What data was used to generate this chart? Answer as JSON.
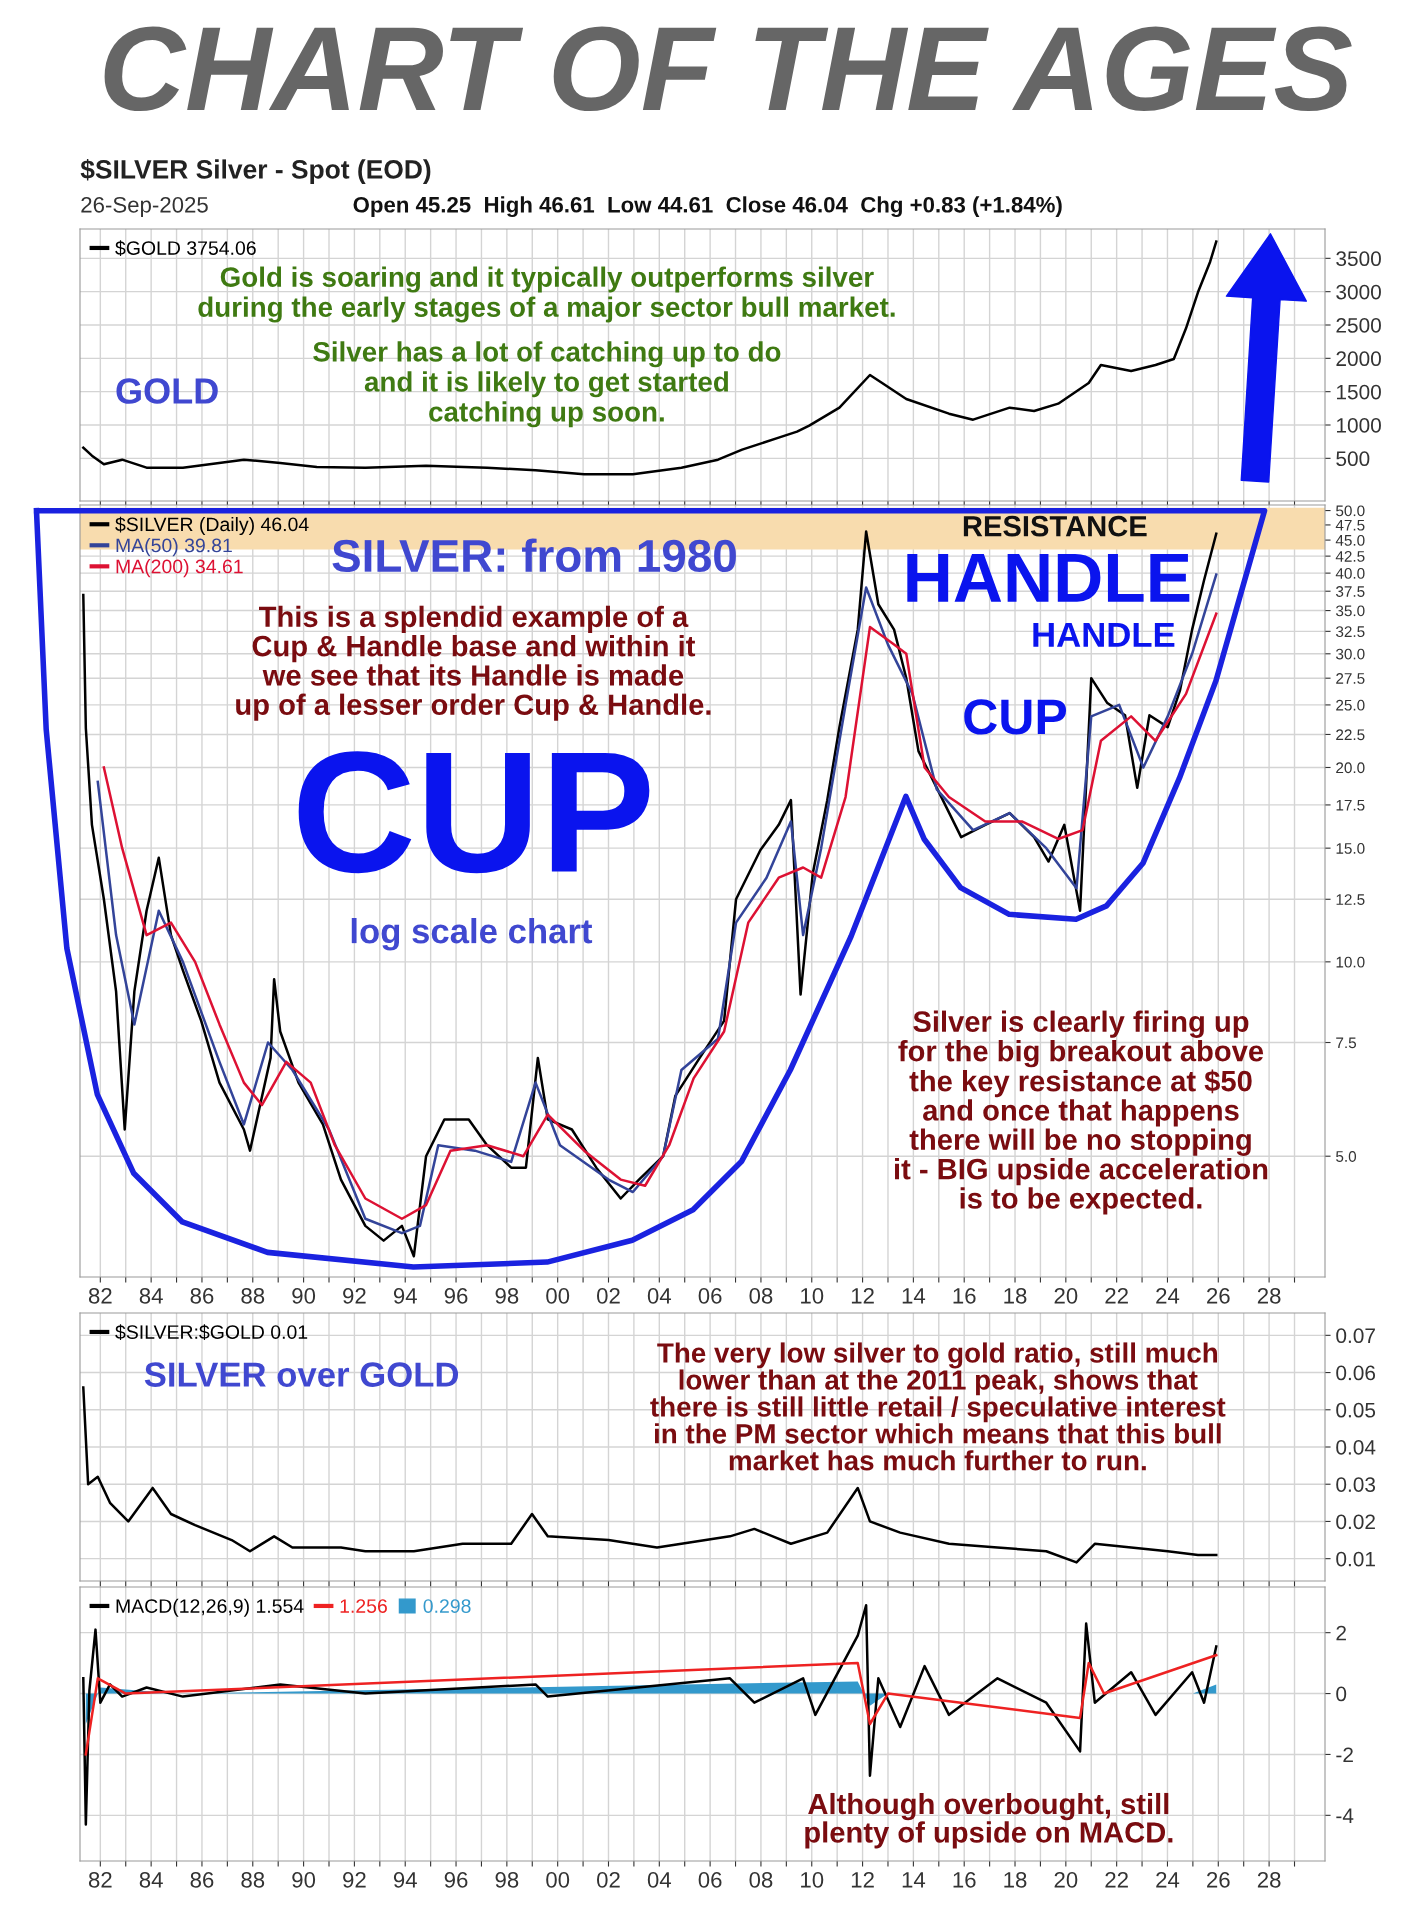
{
  "chart_data": [
    {
      "type": "line",
      "title": "CHART OF THE AGES",
      "subtitle": "$SILVER Silver - Spot (EOD)",
      "annotations": [
        "Gold is soaring and it typically outperforms silver\nduring the early stages of a major sector bull market.",
        "Silver has a lot of catching up to do\nand it is likely to get started\ncatching up soon.",
        "GOLD",
        "26-Sep-2025",
        "Open 45.25  High 46.61  Low 44.61  Close 46.04  Chg +0.83 (+1.84%)"
      ],
      "series": [
        {
          "name": "$GOLD 3754.06",
          "color": "#000000",
          "x": [
            1981.33,
            1981.67,
            1982.14,
            1982.86,
            1983.82,
            1985.25,
            1987.65,
            1989.08,
            1990.52,
            1992.43,
            1994.82,
            1997.22,
            1999.13,
            2001.04,
            2002.96,
            2004.87,
            2006.31,
            2007.26,
            2008.7,
            2009.42,
            2009.9,
            2011.09,
            2012.29,
            2012.77,
            2013.72,
            2015.4,
            2016.35,
            2017.79,
            2018.75,
            2019.7,
            2020.9,
            2021.38,
            2022.57,
            2023.53,
            2024.25,
            2024.73,
            2025.2,
            2025.68,
            2025.92
          ],
          "values": [
            660,
            540,
            410,
            480,
            360,
            360,
            480,
            430,
            370,
            360,
            390,
            360,
            320,
            260,
            260,
            360,
            480,
            630,
            810,
            900,
            990,
            1260,
            1750,
            1630,
            1390,
            1170,
            1080,
            1260,
            1210,
            1320,
            1630,
            1900,
            1810,
            1900,
            1990,
            2450,
            2990,
            3450,
            3750
          ]
        }
      ],
      "xlim": [
        1981.2,
        2030.2
      ],
      "xticks": [
        1982,
        1983,
        1984,
        1985,
        1986,
        1987,
        1988,
        1989,
        1990,
        1991,
        1992,
        1993,
        1994,
        1995,
        1996,
        1997,
        1998,
        1999,
        2000,
        2001,
        2002,
        2003,
        2004,
        2005,
        2006,
        2007,
        2008,
        2009,
        2010,
        2011,
        2012,
        2013,
        2014,
        2015,
        2016,
        2017,
        2018,
        2019,
        2020,
        2021,
        2022,
        2023,
        2024,
        2025,
        2026,
        2027,
        2028,
        2029
      ],
      "ylim": [
        -140,
        3940
      ],
      "yticks": [
        500,
        1000,
        1500,
        2000,
        2500,
        3000,
        3500
      ],
      "grid": true,
      "legend": "top left",
      "tick_labels": "y"
    },
    {
      "type": "line",
      "annotations": [
        "SILVER: from 1980",
        "This is a splendid example of a\nCup & Handle base and within it\nwe see that its Handle is made\nup of a lesser order Cup & Handle.",
        "CUP",
        "log scale chart",
        "HANDLE",
        "HANDLE",
        "CUP",
        "Silver is clearly firing up\nfor the big breakout above\nthe key resistance at $50\nand once that happens\nthere will be no stopping\nit - BIG upside acceleration\nis to be expected."
      ],
      "series": [
        {
          "name": "$SILVER (Daily) 46.04",
          "color": "#000000",
          "x": [
            1981.33,
            1981.43,
            1981.67,
            1982.14,
            1982.62,
            1982.96,
            1983.34,
            1983.82,
            1984.3,
            1984.78,
            1985.25,
            1985.97,
            1986.69,
            1987.65,
            1987.89,
            1988.7,
            1988.84,
            1989.08,
            1989.8,
            1990.76,
            1991.47,
            1992.43,
            1993.15,
            1993.87,
            1994.34,
            1994.82,
            1995.54,
            1996.5,
            1997.22,
            1998.17,
            1998.75,
            1999.22,
            1999.61,
            2000.56,
            2001.52,
            2002.48,
            2003.2,
            2004.15,
            2004.63,
            2005.59,
            2006.55,
            2007.02,
            2007.98,
            2008.7,
            2009.18,
            2009.56,
            2010.04,
            2010.61,
            2011.09,
            2011.81,
            2012.14,
            2012.62,
            2013.24,
            2013.72,
            2014.2,
            2014.92,
            2015.88,
            2016.83,
            2017.79,
            2018.75,
            2019.32,
            2019.94,
            2020.56,
            2021.0,
            2021.62,
            2022.33,
            2022.81,
            2023.29,
            2024.01,
            2024.49,
            2024.97,
            2025.44,
            2025.92
          ],
          "values": [
            37,
            23,
            16.3,
            12.5,
            9,
            5.5,
            9,
            12,
            14.5,
            11,
            9.7,
            8.1,
            6.5,
            5.5,
            5.1,
            7.1,
            9.4,
            7.8,
            6.5,
            5.6,
            4.6,
            3.9,
            3.7,
            3.9,
            3.5,
            5.0,
            5.7,
            5.7,
            5.2,
            4.8,
            4.8,
            7.1,
            5.7,
            5.5,
            4.8,
            4.3,
            4.6,
            5.0,
            6.2,
            7.1,
            8.1,
            12.5,
            14.9,
            16.3,
            17.8,
            8.9,
            13.7,
            17.8,
            23.1,
            32.7,
            46.4,
            35.8,
            32.7,
            27.5,
            21.2,
            18.6,
            15.6,
            16.3,
            17.0,
            15.6,
            14.3,
            16.3,
            12.0,
            27.5,
            25.2,
            24.1,
            18.6,
            24.1,
            23.1,
            26.3,
            32.7,
            39.0,
            46.04
          ]
        },
        {
          "name": "MA(50) 39.81",
          "color": "#334499",
          "x": [
            1981.9,
            1982.62,
            1983.34,
            1984.3,
            1985.25,
            1986.69,
            1987.65,
            1988.6,
            1989.56,
            1991.0,
            1992.43,
            1993.87,
            1994.58,
            1995.3,
            1996.74,
            1998.17,
            1999.13,
            2000.09,
            2002.0,
            2002.96,
            2004.15,
            2004.87,
            2006.31,
            2007.02,
            2008.22,
            2009.18,
            2009.66,
            2010.37,
            2011.33,
            2012.14,
            2013.0,
            2013.96,
            2014.92,
            2016.35,
            2017.79,
            2019.23,
            2020.42,
            2021.0,
            2022.1,
            2023.05,
            2024.01,
            2024.97,
            2025.92
          ],
          "values": [
            19,
            11,
            8,
            12,
            10,
            7,
            5.6,
            7.5,
            6.8,
            5.5,
            4.0,
            3.8,
            3.9,
            5.2,
            5.1,
            4.9,
            6.5,
            5.2,
            4.6,
            4.4,
            5.0,
            6.8,
            7.6,
            11.5,
            13.5,
            16.5,
            11,
            15,
            25,
            38,
            31,
            26,
            18.5,
            16,
            17,
            15,
            13,
            24,
            25,
            20,
            24,
            30,
            39.81
          ]
        },
        {
          "name": "MA(200) 34.61",
          "color": "#dd1133",
          "x": [
            1982.14,
            1982.86,
            1983.82,
            1984.78,
            1985.73,
            1986.69,
            1987.65,
            1988.36,
            1989.32,
            1990.28,
            1991.23,
            1992.43,
            1993.87,
            1994.82,
            1995.78,
            1997.22,
            1998.65,
            1999.61,
            2001.04,
            2002.48,
            2003.44,
            2004.39,
            2005.35,
            2006.55,
            2007.5,
            2008.7,
            2009.66,
            2010.37,
            2011.33,
            2012.29,
            2013.24,
            2013.72,
            2014.44,
            2015.4,
            2016.83,
            2018.27,
            2019.7,
            2020.66,
            2021.38,
            2022.57,
            2023.53,
            2024.73,
            2025.92
          ],
          "values": [
            20,
            15,
            11,
            11.5,
            10,
            8,
            6.5,
            6,
            7,
            6.5,
            5.2,
            4.3,
            4.0,
            4.2,
            5.1,
            5.2,
            5.0,
            5.8,
            5.1,
            4.6,
            4.5,
            5.2,
            6.6,
            7.8,
            11.5,
            13.5,
            14,
            13.5,
            18,
            33,
            31,
            30,
            20,
            18,
            16.5,
            16.5,
            15.5,
            16,
            22,
            24,
            22,
            26,
            34.61
          ]
        }
      ],
      "xlim": [
        1981.2,
        2030.2
      ],
      "xticks": [
        {
          "value": 1982,
          "label": "82"
        },
        {
          "value": 1983,
          "label": null
        },
        {
          "value": 1984,
          "label": "84"
        },
        {
          "value": 1985,
          "label": null
        },
        {
          "value": 1986,
          "label": "86"
        },
        {
          "value": 1987,
          "label": null
        },
        {
          "value": 1988,
          "label": "88"
        },
        {
          "value": 1989,
          "label": null
        },
        {
          "value": 1990,
          "label": "90"
        },
        {
          "value": 1991,
          "label": null
        },
        {
          "value": 1992,
          "label": "92"
        },
        {
          "value": 1993,
          "label": null
        },
        {
          "value": 1994,
          "label": "94"
        },
        {
          "value": 1995,
          "label": null
        },
        {
          "value": 1996,
          "label": "96"
        },
        {
          "value": 1997,
          "label": null
        },
        {
          "value": 1998,
          "label": "98"
        },
        {
          "value": 1999,
          "label": null
        },
        {
          "value": 2000,
          "label": "00"
        },
        {
          "value": 2001,
          "label": null
        },
        {
          "value": 2002,
          "label": "02"
        },
        {
          "value": 2003,
          "label": null
        },
        {
          "value": 2004,
          "label": "04"
        },
        {
          "value": 2005,
          "label": null
        },
        {
          "value": 2006,
          "label": "06"
        },
        {
          "value": 2007,
          "label": null
        },
        {
          "value": 2008,
          "label": "08"
        },
        {
          "value": 2009,
          "label": null
        },
        {
          "value": 2010,
          "label": "10"
        },
        {
          "value": 2011,
          "label": null
        },
        {
          "value": 2012,
          "label": "12"
        },
        {
          "value": 2013,
          "label": null
        },
        {
          "value": 2014,
          "label": "14"
        },
        {
          "value": 2015,
          "label": null
        },
        {
          "value": 2016,
          "label": "16"
        },
        {
          "value": 2017,
          "label": null
        },
        {
          "value": 2018,
          "label": "18"
        },
        {
          "value": 2019,
          "label": null
        },
        {
          "value": 2020,
          "label": "20"
        },
        {
          "value": 2021,
          "label": null
        },
        {
          "value": 2022,
          "label": "22"
        },
        {
          "value": 2023,
          "label": null
        },
        {
          "value": 2024,
          "label": "24"
        },
        {
          "value": 2025,
          "label": null
        },
        {
          "value": 2026,
          "label": "26"
        },
        {
          "value": 2027,
          "label": null
        },
        {
          "value": 2028,
          "label": "28"
        },
        {
          "value": 2029,
          "label": null
        }
      ],
      "log": "y",
      "ylim": [
        3.25,
        51
      ],
      "yticks": [
        {
          "value": 5,
          "label": "5.0"
        },
        {
          "value": 7.5,
          "label": "7.5"
        },
        {
          "value": 10,
          "label": "10.0"
        },
        {
          "value": 12.5,
          "label": "12.5"
        },
        {
          "value": 15,
          "label": "15.0"
        },
        {
          "value": 17.5,
          "label": "17.5"
        },
        {
          "value": 20,
          "label": "20.0"
        },
        {
          "value": 22.5,
          "label": "22.5"
        },
        {
          "value": 25,
          "label": "25.0"
        },
        {
          "value": 27.5,
          "label": "27.5"
        },
        {
          "value": 30,
          "label": "30.0"
        },
        {
          "value": 32.5,
          "label": "32.5"
        },
        {
          "value": 35,
          "label": "35.0"
        },
        {
          "value": 37.5,
          "label": "37.5"
        },
        {
          "value": 40,
          "label": "40.0"
        },
        {
          "value": 42.5,
          "label": "42.5"
        },
        {
          "value": 45,
          "label": "45.0"
        },
        {
          "value": 47.5,
          "label": "47.5"
        },
        {
          "value": 50,
          "label": "50.0"
        }
      ],
      "bands": [
        {
          "axis": "y",
          "from": 43.5,
          "to": 50.5,
          "label": "RESISTANCE",
          "color": "#f8dcae"
        }
      ],
      "grid": true,
      "legend": "top left"
    },
    {
      "type": "line",
      "annotations": [
        "SILVER over GOLD",
        "The very low silver to gold ratio, still much\nlower than at the 2011 peak, shows that\nthere is still little retail / speculative interest\nin the PM sector which means that this bull\nmarket has much further to run."
      ],
      "series": [
        {
          "name": "$SILVER:$GOLD 0.01",
          "color": "#000000",
          "x": [
            1981.33,
            1981.52,
            1981.9,
            1982.38,
            1983.1,
            1984.06,
            1984.78,
            1985.73,
            1987.17,
            1987.89,
            1988.84,
            1989.56,
            1991.47,
            1992.43,
            1994.34,
            1996.26,
            1998.17,
            1998.99,
            1999.61,
            2002.0,
            2003.91,
            2004.87,
            2006.78,
            2007.74,
            2009.18,
            2010.61,
            2011.81,
            2012.29,
            2013.48,
            2015.4,
            2017.31,
            2019.23,
            2020.42,
            2021.14,
            2022.57,
            2024.01,
            2025.2,
            2025.92
          ],
          "values": [
            0.056,
            0.03,
            0.032,
            0.025,
            0.02,
            0.029,
            0.022,
            0.019,
            0.015,
            0.012,
            0.016,
            0.013,
            0.013,
            0.012,
            0.012,
            0.014,
            0.014,
            0.022,
            0.016,
            0.015,
            0.013,
            0.014,
            0.016,
            0.018,
            0.014,
            0.017,
            0.029,
            0.02,
            0.017,
            0.014,
            0.013,
            0.012,
            0.009,
            0.014,
            0.013,
            0.012,
            0.011,
            0.011
          ]
        }
      ],
      "xlim": [
        1981.2,
        2030.2
      ],
      "xticks": [
        1982,
        1983,
        1984,
        1985,
        1986,
        1987,
        1988,
        1989,
        1990,
        1991,
        1992,
        1993,
        1994,
        1995,
        1996,
        1997,
        1998,
        1999,
        2000,
        2001,
        2002,
        2003,
        2004,
        2005,
        2006,
        2007,
        2008,
        2009,
        2010,
        2011,
        2012,
        2013,
        2014,
        2015,
        2016,
        2017,
        2018,
        2019,
        2020,
        2021,
        2022,
        2023,
        2024,
        2025,
        2026,
        2027,
        2028,
        2029
      ],
      "ylim": [
        0.004,
        0.076
      ],
      "yticks": [
        0.01,
        0.02,
        0.03,
        0.04,
        0.05,
        0.06,
        0.07
      ],
      "grid": true,
      "legend": "top left",
      "tick_labels": "y"
    },
    {
      "type": "line",
      "annotations": [
        "Although overbought, still\nplenty of upside on MACD."
      ],
      "series": [
        {
          "name": "MACD(12,26,9) 1.554",
          "color": "#000000",
          "x": [
            1981.33,
            1981.43,
            1981.57,
            1981.81,
            1982.0,
            1982.38,
            1982.86,
            1983.82,
            1985.25,
            1989.08,
            1992.43,
            1999.13,
            1999.61,
            2006.78,
            2007.74,
            2009.66,
            2010.14,
            2011.81,
            2012.14,
            2012.29,
            2012.62,
            2013.48,
            2014.44,
            2015.4,
            2017.31,
            2019.23,
            2020.56,
            2020.8,
            2021.14,
            2022.57,
            2023.53,
            2024.97,
            2025.44,
            2025.92
          ],
          "values": [
            0.5,
            -4.3,
            0.1,
            2.1,
            -0.3,
            0.3,
            -0.1,
            0.2,
            -0.1,
            0.3,
            0,
            0.3,
            -0.1,
            0.5,
            -0.3,
            0.5,
            -0.7,
            1.9,
            2.9,
            -2.7,
            0.5,
            -1.1,
            0.9,
            -0.7,
            0.5,
            -0.3,
            -1.9,
            2.3,
            -0.3,
            0.7,
            -0.7,
            0.7,
            -0.3,
            1.55
          ]
        },
        {
          "name": "1.256",
          "color": "#ee2222",
          "x": [
            1981.43,
            1981.9,
            1983.0,
            2011.81,
            2012.29,
            2013.0,
            2020.56,
            2020.9,
            2021.5,
            2025.92
          ],
          "values": [
            -2,
            0.5,
            0,
            1.0,
            -1.0,
            0,
            -0.8,
            1.0,
            0,
            1.26
          ]
        },
        {
          "type": "area",
          "name": "0.298",
          "color": "#3399cc",
          "x": [
            1981.43,
            1982.0,
            1985.0,
            2011.81,
            2012.29,
            2013.0,
            2025.0,
            2025.92
          ],
          "values": [
            -1,
            0.2,
            0,
            0.4,
            -0.4,
            0,
            0,
            0.3
          ]
        }
      ],
      "xlim": [
        1981.2,
        2030.2
      ],
      "xticks": [
        {
          "value": 1982,
          "label": "82"
        },
        {
          "value": 1983,
          "label": null
        },
        {
          "value": 1984,
          "label": "84"
        },
        {
          "value": 1985,
          "label": null
        },
        {
          "value": 1986,
          "label": "86"
        },
        {
          "value": 1987,
          "label": null
        },
        {
          "value": 1988,
          "label": "88"
        },
        {
          "value": 1989,
          "label": null
        },
        {
          "value": 1990,
          "label": "90"
        },
        {
          "value": 1991,
          "label": null
        },
        {
          "value": 1992,
          "label": "92"
        },
        {
          "value": 1993,
          "label": null
        },
        {
          "value": 1994,
          "label": "94"
        },
        {
          "value": 1995,
          "label": null
        },
        {
          "value": 1996,
          "label": "96"
        },
        {
          "value": 1997,
          "label": null
        },
        {
          "value": 1998,
          "label": "98"
        },
        {
          "value": 1999,
          "label": null
        },
        {
          "value": 2000,
          "label": "00"
        },
        {
          "value": 2001,
          "label": null
        },
        {
          "value": 2002,
          "label": "02"
        },
        {
          "value": 2003,
          "label": null
        },
        {
          "value": 2004,
          "label": "04"
        },
        {
          "value": 2005,
          "label": null
        },
        {
          "value": 2006,
          "label": "06"
        },
        {
          "value": 2007,
          "label": null
        },
        {
          "value": 2008,
          "label": "08"
        },
        {
          "value": 2009,
          "label": null
        },
        {
          "value": 2010,
          "label": "10"
        },
        {
          "value": 2011,
          "label": null
        },
        {
          "value": 2012,
          "label": "12"
        },
        {
          "value": 2013,
          "label": null
        },
        {
          "value": 2014,
          "label": "14"
        },
        {
          "value": 2015,
          "label": null
        },
        {
          "value": 2016,
          "label": "16"
        },
        {
          "value": 2017,
          "label": null
        },
        {
          "value": 2018,
          "label": "18"
        },
        {
          "value": 2019,
          "label": null
        },
        {
          "value": 2020,
          "label": "20"
        },
        {
          "value": 2021,
          "label": null
        },
        {
          "value": 2022,
          "label": "22"
        },
        {
          "value": 2023,
          "label": null
        },
        {
          "value": 2024,
          "label": "24"
        },
        {
          "value": 2025,
          "label": null
        },
        {
          "value": 2026,
          "label": "26"
        },
        {
          "value": 2027,
          "label": null
        },
        {
          "value": 2028,
          "label": "28"
        },
        {
          "value": 2029,
          "label": null
        }
      ],
      "ylim": [
        -5.5,
        3.5
      ],
      "yticks": [
        -4,
        -2,
        0,
        2
      ],
      "grid": true,
      "legend": "top left"
    }
  ]
}
